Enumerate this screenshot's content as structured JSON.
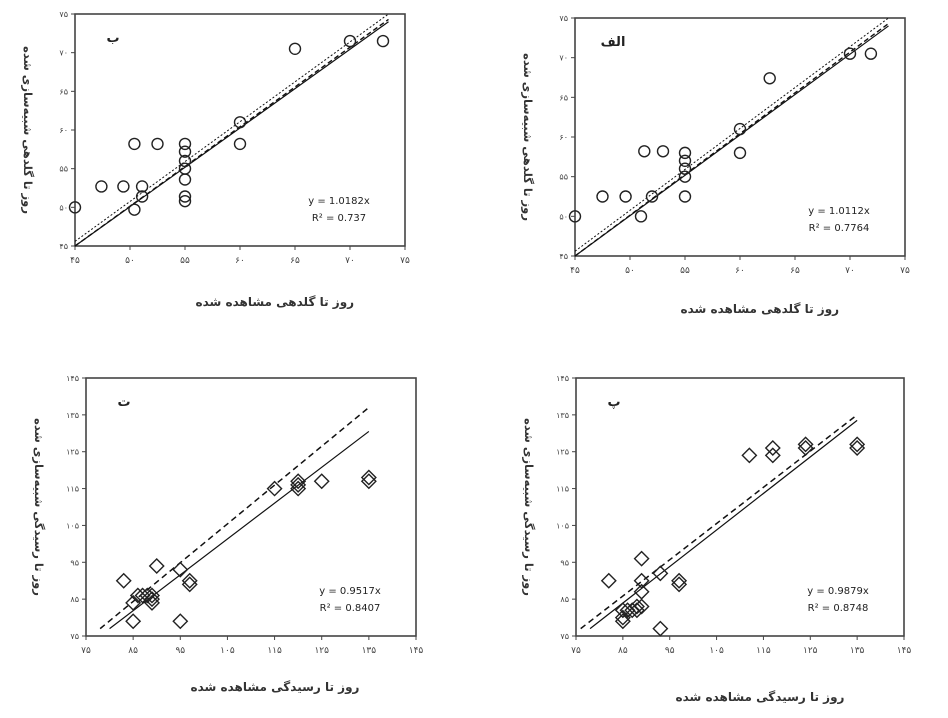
{
  "chart_data": [
    {
      "type": "scatter",
      "panel_letter": "الف",
      "xlabel": "روز تا گلدهی مشاهده شده",
      "ylabel": "روز تا گلدهی شبیه‌سازی شده",
      "xlim": [
        45,
        75
      ],
      "ylim": [
        45,
        75
      ],
      "x_ticks": [
        45,
        50,
        55,
        60,
        65,
        70,
        75
      ],
      "x_tick_labels": [
        "۴۵",
        "۵۰",
        "۵۵",
        "۶۰",
        "۶۵",
        "۷۰",
        "۷۵"
      ],
      "y_ticks": [
        45,
        50,
        55,
        60,
        65,
        70,
        75
      ],
      "y_tick_labels": [
        "۴۵",
        "۵۰",
        "۵۵",
        "۶۰",
        "۶۵",
        "۷۰",
        "۷۵"
      ],
      "marker": "circle",
      "points": [
        [
          45,
          50
        ],
        [
          47.5,
          52.5
        ],
        [
          49.6,
          52.5
        ],
        [
          51,
          50
        ],
        [
          51.3,
          58.2
        ],
        [
          52,
          52.5
        ],
        [
          53,
          58.2
        ],
        [
          55,
          52.5
        ],
        [
          55,
          55
        ],
        [
          55,
          56
        ],
        [
          55,
          57
        ],
        [
          55,
          58
        ],
        [
          60,
          58
        ],
        [
          60,
          61
        ],
        [
          62.7,
          67.4
        ],
        [
          70,
          70.5
        ],
        [
          71.9,
          70.5
        ]
      ],
      "annotations": [
        "y = 1.0112x",
        "R² = 0.7764"
      ],
      "grid": false
    },
    {
      "type": "scatter",
      "panel_letter": "ب",
      "xlabel": "روز تا گلدهی مشاهده شده",
      "ylabel": "روز تا گلدهی شبیه‌سازی شده",
      "xlim": [
        45,
        75
      ],
      "ylim": [
        45,
        75
      ],
      "x_ticks": [
        45,
        50,
        55,
        60,
        65,
        70,
        75
      ],
      "x_tick_labels": [
        "۴۵",
        "۵۰",
        "۵۵",
        "۶۰",
        "۶۵",
        "۷۰",
        "۷۵"
      ],
      "y_ticks": [
        45,
        50,
        55,
        60,
        65,
        70,
        75
      ],
      "y_tick_labels": [
        "۴۵",
        "۵۰",
        "۵۵",
        "۶۰",
        "۶۵",
        "۷۰",
        "۷۵"
      ],
      "marker": "circle",
      "points": [
        [
          45,
          50
        ],
        [
          47.4,
          52.7
        ],
        [
          49.4,
          52.7
        ],
        [
          50.4,
          49.7
        ],
        [
          50.4,
          58.2
        ],
        [
          51.1,
          51.4
        ],
        [
          51.1,
          52.7
        ],
        [
          52.5,
          58.2
        ],
        [
          55,
          50.8
        ],
        [
          55,
          51.4
        ],
        [
          55,
          53.6
        ],
        [
          55,
          55
        ],
        [
          55,
          56
        ],
        [
          55,
          57.2
        ],
        [
          55,
          58.2
        ],
        [
          60,
          58.2
        ],
        [
          60,
          61
        ],
        [
          65,
          70.5
        ],
        [
          70,
          71.5
        ],
        [
          73,
          71.5
        ]
      ],
      "annotations": [
        "y = 1.0182x",
        "R² = 0.737"
      ],
      "grid": false
    },
    {
      "type": "scatter",
      "panel_letter": "پ",
      "xlabel": "روز تا رسیدگی مشاهده شده",
      "ylabel": "روز تا رسیدگی شبیه‌سازی شده",
      "xlim": [
        75,
        145
      ],
      "ylim": [
        75,
        145
      ],
      "x_ticks": [
        75,
        85,
        95,
        105,
        115,
        125,
        135,
        145
      ],
      "x_tick_labels": [
        "۷۵",
        "۸۵",
        "۹۵",
        "۱۰۵",
        "۱۱۵",
        "۱۲۵",
        "۱۳۵",
        "۱۴۵"
      ],
      "y_ticks": [
        75,
        85,
        95,
        105,
        115,
        125,
        135,
        145
      ],
      "y_tick_labels": [
        "۷۵",
        "۸۵",
        "۹۵",
        "۱۰۵",
        "۱۱۵",
        "۱۲۵",
        "۱۳۵",
        "۱۴۵"
      ],
      "marker": "diamond",
      "points": [
        [
          82,
          90
        ],
        [
          85,
          79
        ],
        [
          85,
          80
        ],
        [
          85,
          82
        ],
        [
          86,
          82
        ],
        [
          87,
          82
        ],
        [
          88,
          82
        ],
        [
          88,
          83
        ],
        [
          89,
          83
        ],
        [
          89,
          87
        ],
        [
          89,
          90
        ],
        [
          89,
          96
        ],
        [
          93,
          77
        ],
        [
          93,
          92
        ],
        [
          97,
          89
        ],
        [
          97,
          90
        ],
        [
          112,
          124
        ],
        [
          117,
          124
        ],
        [
          117,
          126
        ],
        [
          124,
          126
        ],
        [
          124,
          127
        ],
        [
          135,
          126
        ],
        [
          135,
          127
        ]
      ],
      "annotations": [
        "y = 0.9879x",
        "R² = 0.8748"
      ],
      "grid": false
    },
    {
      "type": "scatter",
      "panel_letter": "ت",
      "xlabel": "روز تا رسیدگی مشاهده شده",
      "ylabel": "روز تا رسیدگی شبیه‌سازی شده",
      "xlim": [
        75,
        145
      ],
      "ylim": [
        75,
        145
      ],
      "x_ticks": [
        75,
        85,
        95,
        105,
        115,
        125,
        135,
        145
      ],
      "x_tick_labels": [
        "۷۵",
        "۸۵",
        "۹۵",
        "۱۰۵",
        "۱۱۵",
        "۱۲۵",
        "۱۳۵",
        "۱۴۵"
      ],
      "y_ticks": [
        75,
        85,
        95,
        105,
        115,
        125,
        135,
        145
      ],
      "y_tick_labels": [
        "۷۵",
        "۸۵",
        "۹۵",
        "۱۰۵",
        "۱۱۵",
        "۱۲۵",
        "۱۳۵",
        "۱۴۵"
      ],
      "marker": "diamond",
      "points": [
        [
          83,
          90
        ],
        [
          85,
          79
        ],
        [
          85,
          84
        ],
        [
          86,
          86
        ],
        [
          87,
          86
        ],
        [
          88,
          86
        ],
        [
          89,
          84
        ],
        [
          89,
          85
        ],
        [
          89,
          86
        ],
        [
          90,
          94
        ],
        [
          95,
          79
        ],
        [
          95,
          93
        ],
        [
          97,
          89
        ],
        [
          97,
          90
        ],
        [
          115,
          115
        ],
        [
          120,
          115
        ],
        [
          120,
          116
        ],
        [
          120,
          117
        ],
        [
          125,
          117
        ],
        [
          135,
          117
        ],
        [
          135,
          118
        ]
      ],
      "annotations": [
        "y = 0.9517x",
        "R² = 0.8407"
      ],
      "grid": false
    }
  ]
}
